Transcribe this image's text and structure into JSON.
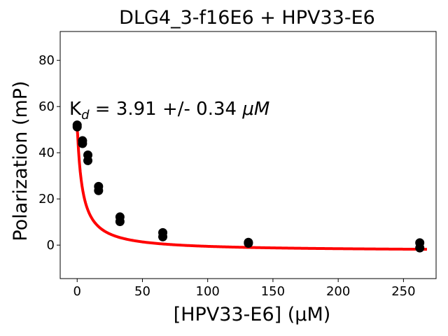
{
  "chart_data": {
    "type": "scatter",
    "title": "DLG4_3-f16E6 + HPV33-E6",
    "xlabel": "[HPV33-E6] (μM)",
    "ylabel": "Polarization (mP)",
    "xlim": [
      -13,
      275
    ],
    "ylim": [
      -14.5,
      92.5
    ],
    "xticks": [
      0,
      50,
      100,
      150,
      200,
      250
    ],
    "yticks": [
      0,
      20,
      40,
      60,
      80
    ],
    "grid": false,
    "annotation": {
      "kd_symbol": "K",
      "kd_subscript": "d",
      "kd_text": " = 3.91 +/- 0.34 ",
      "kd_unit": "μM"
    },
    "series": [
      {
        "color": "#000000",
        "points": [
          [
            0,
            52.0
          ],
          [
            0,
            51.2
          ],
          [
            4.1,
            45.2
          ],
          [
            4.1,
            44.0
          ],
          [
            8.2,
            39.0
          ],
          [
            8.2,
            36.6
          ],
          [
            16.4,
            25.4
          ],
          [
            16.4,
            23.6
          ],
          [
            32.8,
            12.2
          ],
          [
            32.8,
            10.2
          ],
          [
            65.6,
            5.4
          ],
          [
            65.6,
            3.6
          ],
          [
            131.2,
            1.2
          ],
          [
            131.2,
            0.8
          ],
          [
            262.5,
            1.0
          ],
          [
            262.5,
            -1.2
          ]
        ]
      }
    ],
    "fit": {
      "color": "#ff0000",
      "x_start": -1,
      "x_end": 268,
      "baseline": -2.6,
      "amplitude": 55.1,
      "kd": 3.91
    }
  }
}
